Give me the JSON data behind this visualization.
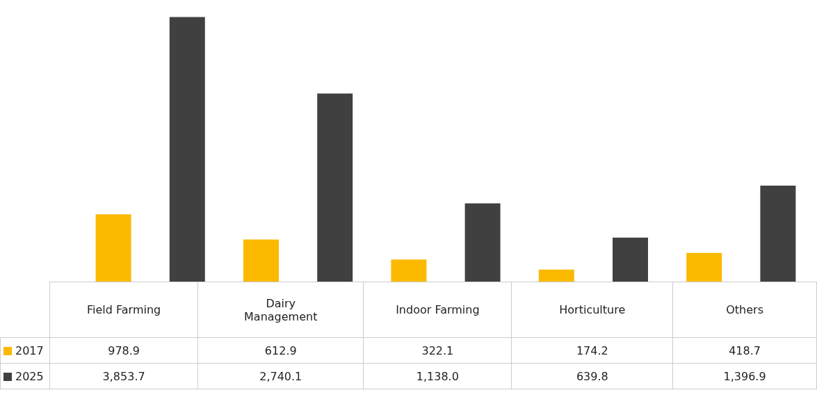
{
  "chart_data": {
    "type": "bar",
    "categories": [
      "Field Farming",
      "Dairy Management",
      "Indoor Farming",
      "Horticulture",
      "Others"
    ],
    "series": [
      {
        "name": "2017",
        "color": "#fbb900",
        "values": [
          978.9,
          612.9,
          322.1,
          174.2,
          418.7
        ],
        "value_labels": [
          "978.9",
          "612.9",
          "322.1",
          "174.2",
          "418.7"
        ]
      },
      {
        "name": "2025",
        "color": "#404040",
        "values": [
          3853.7,
          2740.1,
          1138.0,
          639.8,
          1396.9
        ],
        "value_labels": [
          "3,853.7",
          "2,740.1",
          "1,138.0",
          "639.8",
          "1,396.9"
        ]
      }
    ],
    "legend": "bottom left"
  }
}
